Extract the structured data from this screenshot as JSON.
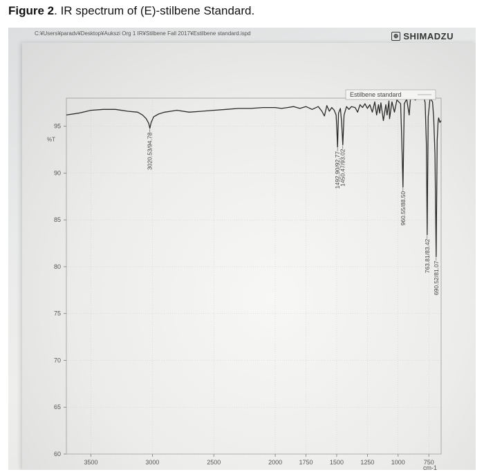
{
  "caption": {
    "bold": "Figure 2",
    "rest": ". IR spectrum of (E)-stilbene Standard."
  },
  "header": {
    "file_path": "C:¥Users¥paradv¥Desktop¥Aukszi Org 1 IR¥Stilbene Fall 2017¥Estilbene standard.ispd",
    "brand": "SHIMADZU",
    "brand_icon": "shimadzu-logo-icon"
  },
  "chart_data": {
    "type": "line",
    "title": "",
    "xlabel": "cm-1",
    "ylabel": "%T",
    "xlim": [
      3700,
      650
    ],
    "ylim": [
      60,
      98
    ],
    "x_ticks": [
      3500,
      3000,
      2500,
      2000,
      1750,
      1500,
      1250,
      1000,
      750
    ],
    "y_ticks": [
      60,
      65,
      70,
      75,
      80,
      85,
      90,
      95
    ],
    "grid": true,
    "legend": "top-right",
    "series": [
      {
        "name": "Estilbene standard",
        "color": "#2a2a2a",
        "x": [
          3700,
          3600,
          3500,
          3400,
          3300,
          3200,
          3120,
          3080,
          3050,
          3030,
          3020.53,
          3010,
          2990,
          2950,
          2900,
          2800,
          2700,
          2600,
          2500,
          2400,
          2300,
          2200,
          2100,
          2000,
          1950,
          1900,
          1850,
          1800,
          1750,
          1700,
          1650,
          1620,
          1600,
          1580,
          1560,
          1540,
          1520,
          1505,
          1500,
          1492.9,
          1485,
          1470,
          1460,
          1450.47,
          1440,
          1420,
          1400,
          1380,
          1350,
          1330,
          1310,
          1290,
          1270,
          1250,
          1230,
          1210,
          1190,
          1175,
          1160,
          1150,
          1140,
          1120,
          1100,
          1090,
          1075,
          1070,
          1050,
          1030,
          1010,
          980,
          970,
          960.55,
          950,
          930,
          910,
          900,
          880,
          860,
          840,
          820,
          800,
          790,
          780,
          770,
          763.81,
          755,
          740,
          720,
          710,
          700,
          690.52,
          682,
          675,
          670,
          660,
          650
        ],
        "y": [
          96.2,
          96.4,
          96.7,
          96.8,
          96.8,
          96.6,
          96.5,
          96.2,
          95.8,
          95.3,
          94.78,
          95.4,
          96.0,
          96.3,
          96.5,
          96.7,
          96.5,
          96.6,
          96.7,
          96.8,
          96.9,
          96.9,
          97.0,
          97.0,
          96.9,
          97.0,
          97.1,
          96.9,
          97.1,
          96.8,
          97.1,
          96.6,
          96.1,
          97.2,
          96.6,
          97.0,
          96.7,
          96.2,
          95.0,
          92.77,
          96.4,
          96.9,
          95.4,
          93.02,
          96.2,
          97.1,
          96.8,
          97.1,
          97.0,
          96.5,
          97.3,
          97.0,
          97.4,
          96.9,
          97.3,
          96.5,
          97.6,
          96.2,
          97.3,
          96.4,
          97.5,
          95.6,
          97.3,
          96.2,
          97.7,
          95.8,
          97.6,
          96.5,
          97.8,
          97.4,
          93.5,
          88.5,
          97.4,
          97.9,
          96.2,
          97.9,
          98.0,
          97.8,
          98.1,
          98.2,
          98.3,
          98.1,
          97.5,
          93.0,
          83.42,
          96.0,
          98.0,
          97.6,
          95.8,
          92.0,
          81.07,
          93.5,
          95.5,
          95.9,
          95.4,
          95.6
        ]
      }
    ],
    "annotations": [
      {
        "text": "3020.53/94.78",
        "x": 3020.53,
        "y": 94.78
      },
      {
        "text": "1492.90/92.77",
        "x": 1492.9,
        "y": 92.77
      },
      {
        "text": "1450.47/93.02",
        "x": 1450.47,
        "y": 93.02
      },
      {
        "text": "960.55/88.50",
        "x": 960.55,
        "y": 88.5
      },
      {
        "text": "763.81/83.42",
        "x": 763.81,
        "y": 83.42
      },
      {
        "text": "690.52/81.07",
        "x": 690.52,
        "y": 81.07
      }
    ]
  }
}
